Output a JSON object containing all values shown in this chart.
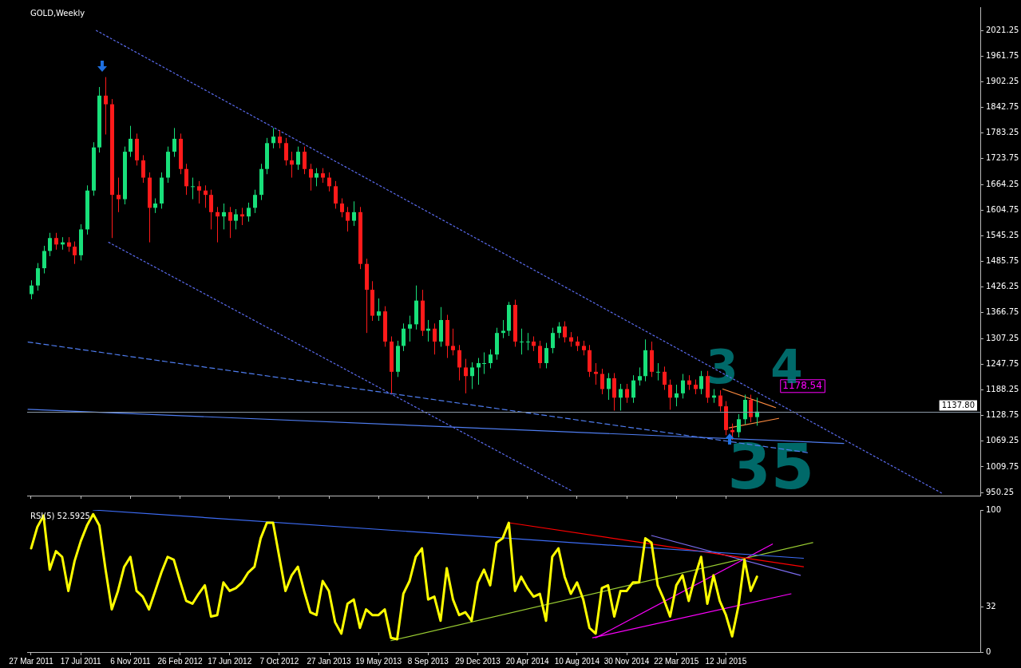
{
  "chart_data": [
    {
      "type": "candlestick",
      "title": "GOLD,Weekly",
      "x": [
        "2011-03-27",
        "2011-04-10",
        "2011-04-24",
        "2011-05-08",
        "2011-05-22",
        "2011-06-05",
        "2011-06-19",
        "2011-07-03",
        "2011-07-17",
        "2011-07-31",
        "2011-08-14",
        "2011-08-28",
        "2011-09-11",
        "2011-09-25",
        "2011-10-09",
        "2011-10-23",
        "2011-11-06",
        "2011-11-20",
        "2011-12-04",
        "2011-12-18",
        "2012-01-01",
        "2012-01-15",
        "2012-01-29",
        "2012-02-12",
        "2012-02-26",
        "2012-03-11",
        "2012-03-25",
        "2012-04-08",
        "2012-04-22",
        "2012-05-06",
        "2012-05-20",
        "2012-06-03",
        "2012-06-17",
        "2012-07-01",
        "2012-07-15",
        "2012-07-29",
        "2012-08-12",
        "2012-08-26",
        "2012-09-09",
        "2012-09-23",
        "2012-10-07",
        "2012-10-21",
        "2012-11-04",
        "2012-11-18",
        "2012-12-02",
        "2012-12-16",
        "2012-12-30",
        "2013-01-13",
        "2013-01-27",
        "2013-02-10",
        "2013-02-24",
        "2013-03-10",
        "2013-03-24",
        "2013-04-07",
        "2013-04-21",
        "2013-05-05",
        "2013-05-19",
        "2013-06-02",
        "2013-06-16",
        "2013-06-30",
        "2013-07-14",
        "2013-07-28",
        "2013-08-11",
        "2013-08-25",
        "2013-09-08",
        "2013-09-22",
        "2013-10-06",
        "2013-10-20",
        "2013-11-03",
        "2013-11-17",
        "2013-12-01",
        "2013-12-15",
        "2013-12-29",
        "2014-01-12",
        "2014-01-26",
        "2014-02-09",
        "2014-02-23",
        "2014-03-09",
        "2014-03-23",
        "2014-04-06",
        "2014-04-20",
        "2014-05-04",
        "2014-05-18",
        "2014-06-01",
        "2014-06-15",
        "2014-06-29",
        "2014-07-13",
        "2014-07-27",
        "2014-08-10",
        "2014-08-24",
        "2014-09-07",
        "2014-09-21",
        "2014-10-05",
        "2014-10-19",
        "2014-11-02",
        "2014-11-16",
        "2014-11-30",
        "2014-12-14",
        "2014-12-28",
        "2015-01-11",
        "2015-01-25",
        "2015-02-08",
        "2015-02-22",
        "2015-03-08",
        "2015-03-22",
        "2015-04-05",
        "2015-04-19",
        "2015-05-03",
        "2015-05-17",
        "2015-05-31",
        "2015-06-14",
        "2015-06-28",
        "2015-07-12",
        "2015-07-26",
        "2015-08-09",
        "2015-08-23",
        "2015-09-06",
        "2015-09-20"
      ],
      "ohlc": [
        [
          1410,
          1442,
          1398,
          1430
        ],
        [
          1430,
          1482,
          1418,
          1470
        ],
        [
          1470,
          1522,
          1458,
          1510
        ],
        [
          1510,
          1552,
          1498,
          1540
        ],
        [
          1540,
          1552,
          1513,
          1525
        ],
        [
          1525,
          1542,
          1513,
          1530
        ],
        [
          1530,
          1542,
          1508,
          1520
        ],
        [
          1520,
          1532,
          1480,
          1500
        ],
        [
          1500,
          1572,
          1488,
          1560
        ],
        [
          1560,
          1662,
          1548,
          1650
        ],
        [
          1650,
          1762,
          1638,
          1750
        ],
        [
          1750,
          1890,
          1738,
          1870
        ],
        [
          1870,
          1913,
          1780,
          1850
        ],
        [
          1850,
          1862,
          1540,
          1640
        ],
        [
          1640,
          1680,
          1600,
          1630
        ],
        [
          1630,
          1752,
          1618,
          1740
        ],
        [
          1740,
          1800,
          1728,
          1770
        ],
        [
          1770,
          1782,
          1708,
          1720
        ],
        [
          1720,
          1732,
          1668,
          1680
        ],
        [
          1680,
          1692,
          1530,
          1610
        ],
        [
          1610,
          1632,
          1598,
          1620
        ],
        [
          1620,
          1692,
          1608,
          1680
        ],
        [
          1680,
          1752,
          1668,
          1740
        ],
        [
          1740,
          1795,
          1728,
          1770
        ],
        [
          1770,
          1782,
          1688,
          1700
        ],
        [
          1700,
          1712,
          1640,
          1660
        ],
        [
          1660,
          1680,
          1630,
          1660
        ],
        [
          1660,
          1672,
          1620,
          1650
        ],
        [
          1650,
          1662,
          1610,
          1640
        ],
        [
          1640,
          1652,
          1560,
          1600
        ],
        [
          1600,
          1612,
          1530,
          1590
        ],
        [
          1590,
          1620,
          1560,
          1600
        ],
        [
          1600,
          1612,
          1540,
          1580
        ],
        [
          1580,
          1607,
          1560,
          1595
        ],
        [
          1595,
          1610,
          1570,
          1590
        ],
        [
          1590,
          1622,
          1578,
          1610
        ],
        [
          1610,
          1652,
          1598,
          1640
        ],
        [
          1640,
          1712,
          1628,
          1700
        ],
        [
          1700,
          1772,
          1688,
          1760
        ],
        [
          1760,
          1795,
          1748,
          1775
        ],
        [
          1775,
          1790,
          1748,
          1760
        ],
        [
          1760,
          1772,
          1708,
          1720
        ],
        [
          1720,
          1740,
          1680,
          1710
        ],
        [
          1710,
          1752,
          1698,
          1740
        ],
        [
          1740,
          1752,
          1688,
          1700
        ],
        [
          1700,
          1712,
          1650,
          1680
        ],
        [
          1680,
          1702,
          1660,
          1690
        ],
        [
          1690,
          1702,
          1668,
          1680
        ],
        [
          1680,
          1692,
          1648,
          1660
        ],
        [
          1660,
          1672,
          1608,
          1620
        ],
        [
          1620,
          1632,
          1588,
          1600
        ],
        [
          1600,
          1612,
          1555,
          1580
        ],
        [
          1580,
          1625,
          1568,
          1600
        ],
        [
          1600,
          1612,
          1468,
          1480
        ],
        [
          1480,
          1492,
          1320,
          1420
        ],
        [
          1420,
          1440,
          1348,
          1360
        ],
        [
          1360,
          1400,
          1348,
          1370
        ],
        [
          1370,
          1382,
          1288,
          1300
        ],
        [
          1300,
          1312,
          1180,
          1230
        ],
        [
          1230,
          1302,
          1218,
          1290
        ],
        [
          1290,
          1342,
          1278,
          1330
        ],
        [
          1330,
          1360,
          1300,
          1340
        ],
        [
          1340,
          1430,
          1328,
          1395
        ],
        [
          1395,
          1420,
          1313,
          1325
        ],
        [
          1325,
          1350,
          1300,
          1330
        ],
        [
          1330,
          1342,
          1270,
          1300
        ],
        [
          1300,
          1380,
          1288,
          1350
        ],
        [
          1350,
          1362,
          1262,
          1290
        ],
        [
          1290,
          1330,
          1268,
          1280
        ],
        [
          1280,
          1292,
          1210,
          1240
        ],
        [
          1240,
          1260,
          1180,
          1220
        ],
        [
          1220,
          1252,
          1190,
          1240
        ],
        [
          1240,
          1262,
          1200,
          1250
        ],
        [
          1250,
          1275,
          1225,
          1250
        ],
        [
          1250,
          1282,
          1238,
          1270
        ],
        [
          1270,
          1332,
          1258,
          1320
        ],
        [
          1320,
          1350,
          1308,
          1325
        ],
        [
          1325,
          1392,
          1313,
          1385
        ],
        [
          1385,
          1397,
          1288,
          1300
        ],
        [
          1300,
          1330,
          1270,
          1300
        ],
        [
          1300,
          1320,
          1280,
          1300
        ],
        [
          1300,
          1312,
          1278,
          1290
        ],
        [
          1290,
          1302,
          1238,
          1250
        ],
        [
          1250,
          1297,
          1238,
          1285
        ],
        [
          1285,
          1332,
          1273,
          1320
        ],
        [
          1320,
          1345,
          1308,
          1335
        ],
        [
          1335,
          1347,
          1298,
          1310
        ],
        [
          1310,
          1322,
          1288,
          1300
        ],
        [
          1300,
          1312,
          1278,
          1290
        ],
        [
          1290,
          1302,
          1268,
          1280
        ],
        [
          1280,
          1292,
          1218,
          1230
        ],
        [
          1230,
          1250,
          1200,
          1225
        ],
        [
          1225,
          1237,
          1178,
          1190
        ],
        [
          1190,
          1227,
          1165,
          1215
        ],
        [
          1215,
          1227,
          1140,
          1170
        ],
        [
          1170,
          1202,
          1140,
          1190
        ],
        [
          1190,
          1202,
          1158,
          1170
        ],
        [
          1170,
          1222,
          1158,
          1210
        ],
        [
          1210,
          1240,
          1198,
          1220
        ],
        [
          1220,
          1305,
          1208,
          1280
        ],
        [
          1280,
          1300,
          1218,
          1230
        ],
        [
          1230,
          1250,
          1210,
          1230
        ],
        [
          1230,
          1242,
          1188,
          1200
        ],
        [
          1200,
          1212,
          1142,
          1170
        ],
        [
          1170,
          1200,
          1150,
          1180
        ],
        [
          1180,
          1225,
          1168,
          1210
        ],
        [
          1210,
          1222,
          1188,
          1200
        ],
        [
          1200,
          1212,
          1178,
          1190
        ],
        [
          1190,
          1232,
          1178,
          1220
        ],
        [
          1220,
          1232,
          1158,
          1170
        ],
        [
          1170,
          1190,
          1158,
          1175
        ],
        [
          1175,
          1187,
          1138,
          1150
        ],
        [
          1150,
          1162,
          1083,
          1095
        ],
        [
          1095,
          1110,
          1072,
          1090
        ],
        [
          1090,
          1132,
          1078,
          1120
        ],
        [
          1120,
          1177,
          1108,
          1165
        ],
        [
          1165,
          1177,
          1113,
          1125
        ],
        [
          1125,
          1170,
          1105,
          1137.8
        ]
      ],
      "series": [
        {
          "type": "line",
          "color": "#5b6cf0",
          "line_style": "dotted",
          "x": [
            "2011-08-21",
            "2016-11-13"
          ],
          "values": [
            2021,
            947
          ]
        },
        {
          "type": "line",
          "color": "#5b6cf0",
          "line_style": "dotted",
          "x": [
            "2011-09-18",
            "2014-07-27"
          ],
          "values": [
            1530,
            955
          ]
        },
        {
          "type": "line",
          "color": "#4f7df0",
          "line_style": "dashed",
          "x": [
            "2011-03-20",
            "2016-01-17"
          ],
          "values": [
            1299,
            1042
          ]
        },
        {
          "type": "line",
          "color": "#4f7df0",
          "line_style": "solid",
          "x": [
            "2011-03-20",
            "2016-04-03"
          ],
          "values": [
            1143,
            1064
          ]
        },
        {
          "type": "line",
          "color": "#ff8c40",
          "line_style": "solid",
          "x": [
            "2015-07-05",
            "2015-11-01"
          ],
          "values": [
            1190,
            1147
          ]
        },
        {
          "type": "line",
          "color": "#ff8c40",
          "line_style": "solid",
          "x": [
            "2015-07-19",
            "2015-11-08"
          ],
          "values": [
            1100,
            1122
          ]
        }
      ],
      "ref_lines": [
        {
          "axis": "y",
          "value": 1137.8,
          "label": "1137.80",
          "color": "#8c9aa8"
        }
      ],
      "annotations": [
        "1178.54",
        "3",
        "4",
        "35"
      ],
      "xlim": [
        "2011-03-18",
        "2017-02-05"
      ],
      "xticks": [
        {
          "value": "2011-03-27",
          "label": null
        },
        {
          "value": "2011-07-17",
          "label": null
        },
        {
          "value": "2011-11-06",
          "label": null
        },
        {
          "value": "2012-02-26",
          "label": null
        },
        {
          "value": "2012-06-17",
          "label": null
        },
        {
          "value": "2012-10-07",
          "label": null
        },
        {
          "value": "2013-01-27",
          "label": null
        },
        {
          "value": "2013-05-19",
          "label": null
        },
        {
          "value": "2013-09-08",
          "label": null
        },
        {
          "value": "2013-12-29",
          "label": null
        },
        {
          "value": "2014-04-20",
          "label": null
        },
        {
          "value": "2014-08-10",
          "label": null
        },
        {
          "value": "2014-11-30",
          "label": null
        },
        {
          "value": "2015-03-22",
          "label": null
        },
        {
          "value": "2015-07-12",
          "label": null
        }
      ],
      "ylim": [
        943,
        2075
      ],
      "yticks": [
        950.25,
        1009.75,
        1069.25,
        1128.75,
        1188.25,
        1247.75,
        1307.25,
        1366.75,
        1426.25,
        1485.75,
        1545.25,
        1604.75,
        1664.25,
        1723.75,
        1783.25,
        1842.75,
        1902.25,
        1961.75,
        2021.25
      ],
      "tick_labels": "y"
    },
    {
      "type": "line",
      "title": "RSI(5) 52.5925",
      "x": [
        "2011-03-27",
        "2011-04-10",
        "2011-04-24",
        "2011-05-08",
        "2011-05-22",
        "2011-06-05",
        "2011-06-19",
        "2011-07-03",
        "2011-07-17",
        "2011-07-31",
        "2011-08-14",
        "2011-08-28",
        "2011-09-11",
        "2011-09-25",
        "2011-10-09",
        "2011-10-23",
        "2011-11-06",
        "2011-11-20",
        "2011-12-04",
        "2011-12-18",
        "2012-01-01",
        "2012-01-15",
        "2012-01-29",
        "2012-02-12",
        "2012-02-26",
        "2012-03-11",
        "2012-03-25",
        "2012-04-08",
        "2012-04-22",
        "2012-05-06",
        "2012-05-20",
        "2012-06-03",
        "2012-06-17",
        "2012-07-01",
        "2012-07-15",
        "2012-07-29",
        "2012-08-12",
        "2012-08-26",
        "2012-09-09",
        "2012-09-23",
        "2012-10-07",
        "2012-10-21",
        "2012-11-04",
        "2012-11-18",
        "2012-12-02",
        "2012-12-16",
        "2012-12-30",
        "2013-01-13",
        "2013-01-27",
        "2013-02-10",
        "2013-02-24",
        "2013-03-10",
        "2013-03-24",
        "2013-04-07",
        "2013-04-21",
        "2013-05-05",
        "2013-05-19",
        "2013-06-02",
        "2013-06-16",
        "2013-06-30",
        "2013-07-14",
        "2013-07-28",
        "2013-08-11",
        "2013-08-25",
        "2013-09-08",
        "2013-09-22",
        "2013-10-06",
        "2013-10-20",
        "2013-11-03",
        "2013-11-17",
        "2013-12-01",
        "2013-12-15",
        "2013-12-29",
        "2014-01-12",
        "2014-01-26",
        "2014-02-09",
        "2014-02-23",
        "2014-03-09",
        "2014-03-23",
        "2014-04-06",
        "2014-04-20",
        "2014-05-04",
        "2014-05-18",
        "2014-06-01",
        "2014-06-15",
        "2014-06-29",
        "2014-07-13",
        "2014-07-27",
        "2014-08-10",
        "2014-08-24",
        "2014-09-07",
        "2014-09-21",
        "2014-10-05",
        "2014-10-19",
        "2014-11-02",
        "2014-11-16",
        "2014-11-30",
        "2014-12-14",
        "2014-12-28",
        "2015-01-11",
        "2015-01-25",
        "2015-02-08",
        "2015-02-22",
        "2015-03-08",
        "2015-03-22",
        "2015-04-05",
        "2015-04-19",
        "2015-05-03",
        "2015-05-17",
        "2015-05-31",
        "2015-06-14",
        "2015-06-28",
        "2015-07-12",
        "2015-07-26",
        "2015-08-09",
        "2015-08-23",
        "2015-09-06",
        "2015-09-20"
      ],
      "series": [
        {
          "color": "#ffff00",
          "values": [
            73,
            88,
            96,
            58,
            71,
            67,
            43,
            64,
            78,
            89,
            97,
            89,
            58,
            30,
            43,
            60,
            67,
            43,
            39,
            30,
            43,
            56,
            67,
            65,
            50,
            36,
            34,
            41,
            47,
            25,
            26,
            49,
            43,
            45,
            49,
            56,
            60,
            80,
            91,
            91,
            67,
            43,
            54,
            60,
            43,
            28,
            26,
            50,
            43,
            21,
            13,
            34,
            37,
            17,
            30,
            26,
            26,
            30,
            10,
            9,
            41,
            50,
            67,
            73,
            37,
            39,
            22,
            59,
            37,
            26,
            28,
            22,
            49,
            58,
            47,
            77,
            80,
            91,
            43,
            53,
            45,
            39,
            41,
            22,
            67,
            73,
            53,
            41,
            49,
            37,
            17,
            13,
            45,
            47,
            25,
            43,
            43,
            49,
            49,
            80,
            77,
            47,
            37,
            25,
            47,
            54,
            36,
            53,
            67,
            34,
            54,
            36,
            26,
            11,
            32,
            65,
            43,
            53
          ]
        },
        {
          "color": "#3d6cf5",
          "x": [
            "2011-08-14",
            "2016-01-03"
          ],
          "values": [
            100,
            66
          ]
        },
        {
          "color": "#ff0000",
          "x": [
            "2014-03-09",
            "2016-01-03"
          ],
          "values": [
            91,
            60
          ]
        },
        {
          "color": "#7b6cf0",
          "x": [
            "2015-01-25",
            "2015-12-27"
          ],
          "values": [
            82,
            54
          ]
        },
        {
          "color": "#9acd32",
          "x": [
            "2013-06-16",
            "2016-01-24"
          ],
          "values": [
            8,
            77
          ]
        },
        {
          "color": "#ff00ff",
          "x": [
            "2014-09-21",
            "2015-10-25"
          ],
          "values": [
            10,
            76
          ]
        },
        {
          "color": "#ff00ff",
          "x": [
            "2014-09-14",
            "2015-12-06"
          ],
          "values": [
            10,
            41
          ]
        }
      ],
      "xlim": [
        "2011-03-18",
        "2017-02-05"
      ],
      "xticks": [
        {
          "value": "2011-03-27",
          "label": "27 Mar 2011"
        },
        {
          "value": "2011-07-17",
          "label": "17 Jul 2011"
        },
        {
          "value": "2011-11-06",
          "label": "6 Nov 2011"
        },
        {
          "value": "2012-02-26",
          "label": "26 Feb 2012"
        },
        {
          "value": "2012-06-17",
          "label": "17 Jun 2012"
        },
        {
          "value": "2012-10-07",
          "label": "7 Oct 2012"
        },
        {
          "value": "2013-01-27",
          "label": "27 Jan 2013"
        },
        {
          "value": "2013-05-19",
          "label": "19 May 2013"
        },
        {
          "value": "2013-09-08",
          "label": "8 Sep 2013"
        },
        {
          "value": "2013-12-29",
          "label": "29 Dec 2013"
        },
        {
          "value": "2014-04-20",
          "label": "20 Apr 2014"
        },
        {
          "value": "2014-08-10",
          "label": "10 Aug 2014"
        },
        {
          "value": "2014-11-30",
          "label": "30 Nov 2014"
        },
        {
          "value": "2015-03-22",
          "label": "22 Mar 2015"
        },
        {
          "value": "2015-07-12",
          "label": "12 Jul 2015"
        }
      ],
      "ylim": [
        0,
        100
      ],
      "yticks": [
        0,
        32,
        100
      ]
    }
  ]
}
